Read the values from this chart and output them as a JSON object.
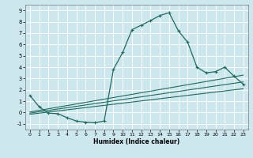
{
  "xlabel": "Humidex (Indice chaleur)",
  "bg_color": "#cce8ee",
  "grid_color": "#ffffff",
  "line_color": "#1e6b5e",
  "xlim": [
    -0.5,
    23.5
  ],
  "ylim": [
    -1.5,
    9.5
  ],
  "xticks": [
    0,
    1,
    2,
    3,
    4,
    5,
    6,
    7,
    8,
    9,
    10,
    11,
    12,
    13,
    14,
    15,
    16,
    17,
    18,
    19,
    20,
    21,
    22,
    23
  ],
  "yticks": [
    -1,
    0,
    1,
    2,
    3,
    4,
    5,
    6,
    7,
    8,
    9
  ],
  "curve1_x": [
    0,
    1,
    2,
    3,
    4,
    5,
    6,
    7,
    8,
    9,
    10,
    11,
    12,
    13,
    14,
    15,
    16,
    17,
    18,
    19,
    20,
    21,
    22,
    23
  ],
  "curve1_y": [
    1.5,
    0.5,
    -0.05,
    -0.1,
    -0.45,
    -0.75,
    -0.85,
    -0.9,
    -0.75,
    3.8,
    5.3,
    7.3,
    7.7,
    8.1,
    8.55,
    8.8,
    7.2,
    6.2,
    4.0,
    3.5,
    3.6,
    4.0,
    3.2,
    2.5
  ],
  "line2_x": [
    0,
    23
  ],
  "line2_y": [
    0.05,
    3.3
  ],
  "line3_x": [
    0,
    23
  ],
  "line3_y": [
    -0.05,
    2.7
  ],
  "line4_x": [
    0,
    23
  ],
  "line4_y": [
    -0.15,
    2.1
  ]
}
